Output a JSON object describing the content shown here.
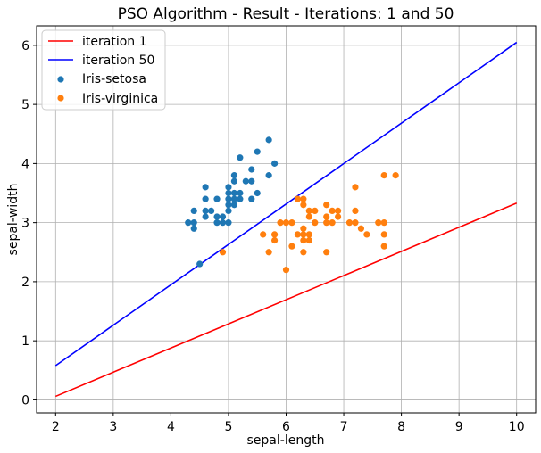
{
  "chart_data": {
    "type": "scatter",
    "title": "PSO Algorithm - Result - Iterations: 1 and 50",
    "xlabel": "sepal-length",
    "ylabel": "sepal-width",
    "xlim": [
      1.67,
      10.33
    ],
    "ylim": [
      -0.22,
      6.33
    ],
    "xticks": [
      2,
      3,
      4,
      5,
      6,
      7,
      8,
      9,
      10
    ],
    "yticks": [
      0,
      1,
      2,
      3,
      4,
      5,
      6
    ],
    "grid": true,
    "legend_position": "top-left",
    "lines": [
      {
        "name": "iteration 1",
        "color": "#ff0000",
        "x": [
          2,
          10
        ],
        "y": [
          0.06,
          3.33
        ]
      },
      {
        "name": "iteration 50",
        "color": "#0000ff",
        "x": [
          2,
          10
        ],
        "y": [
          0.58,
          6.05
        ]
      }
    ],
    "scatter": [
      {
        "name": "Iris-setosa",
        "color": "#1f77b4",
        "points": [
          [
            4.3,
            3.0
          ],
          [
            4.4,
            3.0
          ],
          [
            4.4,
            2.9
          ],
          [
            4.4,
            3.2
          ],
          [
            4.5,
            2.3
          ],
          [
            4.6,
            3.1
          ],
          [
            4.6,
            3.2
          ],
          [
            4.6,
            3.4
          ],
          [
            4.6,
            3.6
          ],
          [
            4.7,
            3.2
          ],
          [
            4.8,
            3.0
          ],
          [
            4.8,
            3.1
          ],
          [
            4.8,
            3.4
          ],
          [
            4.9,
            3.0
          ],
          [
            4.9,
            3.1
          ],
          [
            5.0,
            3.0
          ],
          [
            5.0,
            3.2
          ],
          [
            5.0,
            3.3
          ],
          [
            5.0,
            3.4
          ],
          [
            5.0,
            3.5
          ],
          [
            5.0,
            3.6
          ],
          [
            5.1,
            3.3
          ],
          [
            5.1,
            3.4
          ],
          [
            5.1,
            3.5
          ],
          [
            5.1,
            3.7
          ],
          [
            5.1,
            3.8
          ],
          [
            5.2,
            3.4
          ],
          [
            5.2,
            3.5
          ],
          [
            5.2,
            4.1
          ],
          [
            5.3,
            3.7
          ],
          [
            5.4,
            3.4
          ],
          [
            5.4,
            3.7
          ],
          [
            5.4,
            3.9
          ],
          [
            5.5,
            3.5
          ],
          [
            5.5,
            4.2
          ],
          [
            5.7,
            3.8
          ],
          [
            5.7,
            4.4
          ],
          [
            5.8,
            4.0
          ]
        ]
      },
      {
        "name": "Iris-virginica",
        "color": "#ff7f0e",
        "points": [
          [
            4.9,
            2.5
          ],
          [
            5.6,
            2.8
          ],
          [
            5.7,
            2.5
          ],
          [
            5.8,
            2.7
          ],
          [
            5.8,
            2.8
          ],
          [
            5.9,
            3.0
          ],
          [
            6.0,
            2.2
          ],
          [
            6.0,
            3.0
          ],
          [
            6.1,
            2.6
          ],
          [
            6.1,
            3.0
          ],
          [
            6.2,
            2.8
          ],
          [
            6.2,
            3.4
          ],
          [
            6.3,
            2.5
          ],
          [
            6.3,
            2.7
          ],
          [
            6.3,
            2.8
          ],
          [
            6.3,
            2.9
          ],
          [
            6.3,
            3.3
          ],
          [
            6.3,
            3.4
          ],
          [
            6.4,
            2.7
          ],
          [
            6.4,
            2.8
          ],
          [
            6.4,
            3.1
          ],
          [
            6.4,
            3.2
          ],
          [
            6.5,
            3.0
          ],
          [
            6.5,
            3.2
          ],
          [
            6.7,
            2.5
          ],
          [
            6.7,
            3.0
          ],
          [
            6.7,
            3.1
          ],
          [
            6.7,
            3.3
          ],
          [
            6.8,
            3.0
          ],
          [
            6.8,
            3.2
          ],
          [
            6.9,
            3.1
          ],
          [
            6.9,
            3.2
          ],
          [
            7.1,
            3.0
          ],
          [
            7.2,
            3.0
          ],
          [
            7.2,
            3.2
          ],
          [
            7.2,
            3.6
          ],
          [
            7.3,
            2.9
          ],
          [
            7.4,
            2.8
          ],
          [
            7.6,
            3.0
          ],
          [
            7.7,
            2.6
          ],
          [
            7.7,
            2.8
          ],
          [
            7.7,
            3.0
          ],
          [
            7.7,
            3.8
          ],
          [
            7.9,
            3.8
          ]
        ]
      }
    ]
  }
}
